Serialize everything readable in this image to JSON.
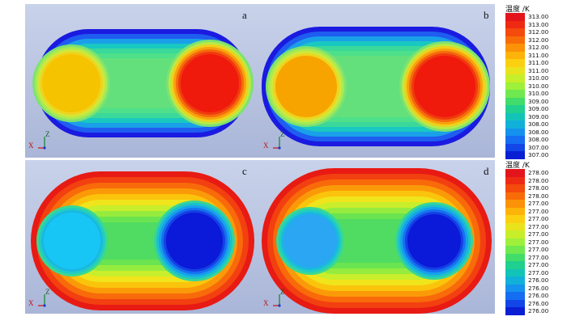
{
  "panels": [
    {
      "label": "a",
      "scheme": "hot",
      "left_core": "#f5c300",
      "right_core": "#f01a0c"
    },
    {
      "label": "b",
      "scheme": "hot",
      "left_core": "#f7a400",
      "right_core": "#f01a0c"
    },
    {
      "label": "c",
      "scheme": "cold",
      "left_core": "#18c6f6",
      "right_core": "#0a1ad8"
    },
    {
      "label": "d",
      "scheme": "cold",
      "left_core": "#2aa6f2",
      "right_core": "#0a1ad8"
    }
  ],
  "axes": {
    "z": "Z",
    "x": "X"
  },
  "legends": [
    {
      "title": "温度 /K",
      "values": [
        "313.00",
        "313.00",
        "312.00",
        "312.00",
        "312.00",
        "311.00",
        "311.00",
        "311.00",
        "310.00",
        "310.00",
        "310.00",
        "309.00",
        "309.00",
        "309.00",
        "308.00",
        "308.00",
        "308.00",
        "307.00",
        "307.00"
      ],
      "colors": [
        "#e3141b",
        "#ee2a12",
        "#f44a0c",
        "#f86c08",
        "#fb9207",
        "#fdb309",
        "#fbd010",
        "#e9e31e",
        "#c7ee2a",
        "#9ef03a",
        "#6fe94f",
        "#41dc6a",
        "#1fd08f",
        "#12c4b7",
        "#11b0d9",
        "#1492ee",
        "#156ef2",
        "#1246e6",
        "#0a1fd4"
      ]
    },
    {
      "title": "温度 /K",
      "values": [
        "278.00",
        "278.00",
        "278.00",
        "278.00",
        "277.00",
        "277.00",
        "277.00",
        "277.00",
        "277.00",
        "277.00",
        "277.00",
        "277.00",
        "277.00",
        "277.00",
        "276.00",
        "276.00",
        "276.00",
        "276.00",
        "276.00"
      ],
      "colors": [
        "#e3141b",
        "#ee2a12",
        "#f44a0c",
        "#f86c08",
        "#fb9207",
        "#fdb309",
        "#fbd010",
        "#e9e31e",
        "#c7ee2a",
        "#9ef03a",
        "#6fe94f",
        "#41dc6a",
        "#1fd08f",
        "#12c4b7",
        "#11b0d9",
        "#1492ee",
        "#156ef2",
        "#1246e6",
        "#0a1fd4"
      ]
    }
  ]
}
